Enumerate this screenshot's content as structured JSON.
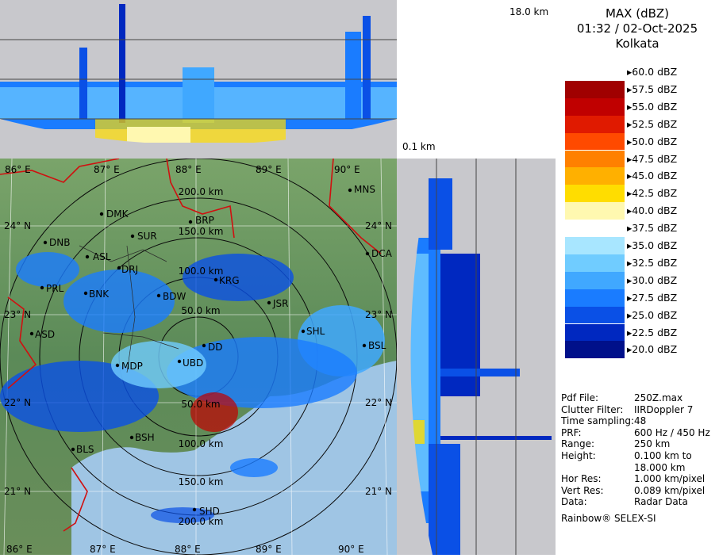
{
  "title": {
    "product": "MAX (dBZ)",
    "datetime": "01:32 / 02-Oct-2025",
    "station": "Kolkata"
  },
  "profile_labels": {
    "top_height": "18.0 km",
    "bottom_height": "0.1 km"
  },
  "legend": {
    "entries": [
      {
        "label": "60.0 dBZ",
        "color": "#ffffff"
      },
      {
        "label": "57.5 dBZ",
        "color": "#a00000"
      },
      {
        "label": "55.0 dBZ",
        "color": "#c00000"
      },
      {
        "label": "52.5 dBZ",
        "color": "#e01a00"
      },
      {
        "label": "50.0 dBZ",
        "color": "#ff4a00"
      },
      {
        "label": "47.5 dBZ",
        "color": "#ff8000"
      },
      {
        "label": "45.0 dBZ",
        "color": "#ffb000"
      },
      {
        "label": "42.5 dBZ",
        "color": "#ffdd00"
      },
      {
        "label": "40.0 dBZ",
        "color": "#fff8b0"
      },
      {
        "label": "37.5 dBZ",
        "color": "#ffffff"
      },
      {
        "label": "35.0 dBZ",
        "color": "#a8e6ff"
      },
      {
        "label": "32.5 dBZ",
        "color": "#70ccff"
      },
      {
        "label": "30.0 dBZ",
        "color": "#40a8ff"
      },
      {
        "label": "27.5 dBZ",
        "color": "#1a7cff"
      },
      {
        "label": "25.0 dBZ",
        "color": "#0a50e6"
      },
      {
        "label": "22.5 dBZ",
        "color": "#0028c0"
      },
      {
        "label": "20.0 dBZ",
        "color": "#00108a"
      }
    ]
  },
  "info": [
    {
      "key": "Pdf File:",
      "value": "250Z.max"
    },
    {
      "key": "Clutter Filter:",
      "value": "IIRDoppler 7"
    },
    {
      "key": "Time sampling:",
      "value": "48"
    },
    {
      "key": "PRF:",
      "value": "600 Hz / 450 Hz"
    },
    {
      "key": "Range:",
      "value": "250 km"
    },
    {
      "key": "Height:",
      "value": "0.100 km to"
    },
    {
      "key": "",
      "value": "18.000 km"
    },
    {
      "key": "Hor Res:",
      "value": "1.000 km/pixel"
    },
    {
      "key": "Vert Res:",
      "value": "0.089 km/pixel"
    },
    {
      "key": "Data:",
      "value": "Radar Data"
    }
  ],
  "footer": "Rainbow® SELEX-SI",
  "map": {
    "lon_labels_top": [
      "86° E",
      "87° E",
      "88° E",
      "89° E",
      "90° E"
    ],
    "lon_labels_bottom": [
      "86° E",
      "87° E",
      "88° E",
      "89° E",
      "90° E"
    ],
    "lat_labels_left": [
      "24° N",
      "23° N",
      "22° N",
      "21° N"
    ],
    "lat_labels_right": [
      "24° N",
      "23° N",
      "22° N",
      "21° N"
    ],
    "range_labels": [
      "200.0 km",
      "150.0 km",
      "100.0 km",
      "50.0 km",
      "50.0 km",
      "100.0 km",
      "150.0 km",
      "200.0 km"
    ],
    "cities": [
      "MNS",
      "DMK",
      "BRP",
      "SUR",
      "DNB",
      "ASL",
      "DCA",
      "DRJ",
      "KRG",
      "PRL",
      "BNK",
      "BDW",
      "JSR",
      "SHL",
      "ASD",
      "DD",
      "BSL",
      "MDP",
      "UBD",
      "BSH",
      "BLS",
      "SHD"
    ],
    "colors": {
      "land": "#5e8a5a",
      "sea": "#9fc5e4",
      "border": "#d01010"
    }
  }
}
